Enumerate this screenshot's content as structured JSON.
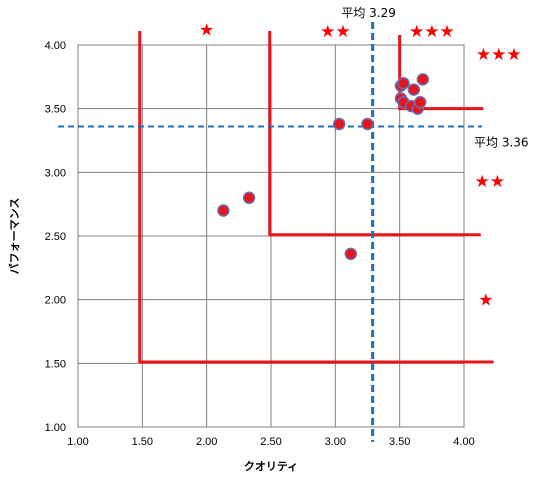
{
  "chart_data": {
    "type": "scatter",
    "xlabel": "クオリティ",
    "ylabel": "パフォーマンス",
    "xlim": [
      1.0,
      4.0
    ],
    "ylim": [
      1.0,
      4.0
    ],
    "x_ticks": [
      "1.00",
      "1.50",
      "2.00",
      "2.50",
      "3.00",
      "3.50",
      "4.00"
    ],
    "y_ticks": [
      "1.00",
      "1.50",
      "2.00",
      "2.50",
      "3.00",
      "3.50",
      "4.00"
    ],
    "grid": true,
    "points": [
      {
        "x": 2.13,
        "y": 2.7
      },
      {
        "x": 2.33,
        "y": 2.8
      },
      {
        "x": 3.03,
        "y": 3.38
      },
      {
        "x": 3.25,
        "y": 3.38
      },
      {
        "x": 3.12,
        "y": 2.36
      },
      {
        "x": 3.51,
        "y": 3.68
      },
      {
        "x": 3.53,
        "y": 3.7
      },
      {
        "x": 3.61,
        "y": 3.65
      },
      {
        "x": 3.68,
        "y": 3.73
      },
      {
        "x": 3.51,
        "y": 3.58
      },
      {
        "x": 3.53,
        "y": 3.55
      },
      {
        "x": 3.59,
        "y": 3.52
      },
      {
        "x": 3.64,
        "y": 3.5
      },
      {
        "x": 3.66,
        "y": 3.55
      }
    ],
    "point_color": "#e8141c",
    "point_edge_color": "#6a6fb0",
    "averages": {
      "x": 3.29,
      "y": 3.36,
      "x_label": "平均 3.29",
      "y_label": "平均 3.36",
      "color": "#1f6fb5"
    },
    "rank_lines_color": "#e8141c",
    "rank_lines": [
      {
        "x": 1.48,
        "y_top": 4.11,
        "y_floor": 1.51,
        "x_end": 4.23
      },
      {
        "x": 2.49,
        "y_top": 4.11,
        "y_floor": 2.51,
        "x_end": 4.13
      },
      {
        "x": 3.5,
        "y_top": 4.08,
        "y_floor": 3.5,
        "x_end": 4.15
      }
    ],
    "star_color": "#ff0000",
    "star_glyph": "★",
    "star_marks": [
      {
        "text": "★",
        "x": 2.0,
        "y": 4.12
      },
      {
        "text": "★★",
        "x": 3.0,
        "y": 4.11
      },
      {
        "text": "★★★",
        "x": 3.75,
        "y": 4.11
      },
      {
        "text": "★★★",
        "x": 4.27,
        "y": 3.93
      },
      {
        "text": "★★",
        "x": 4.2,
        "y": 2.93
      },
      {
        "text": "★",
        "x": 4.17,
        "y": 2.0
      }
    ]
  }
}
